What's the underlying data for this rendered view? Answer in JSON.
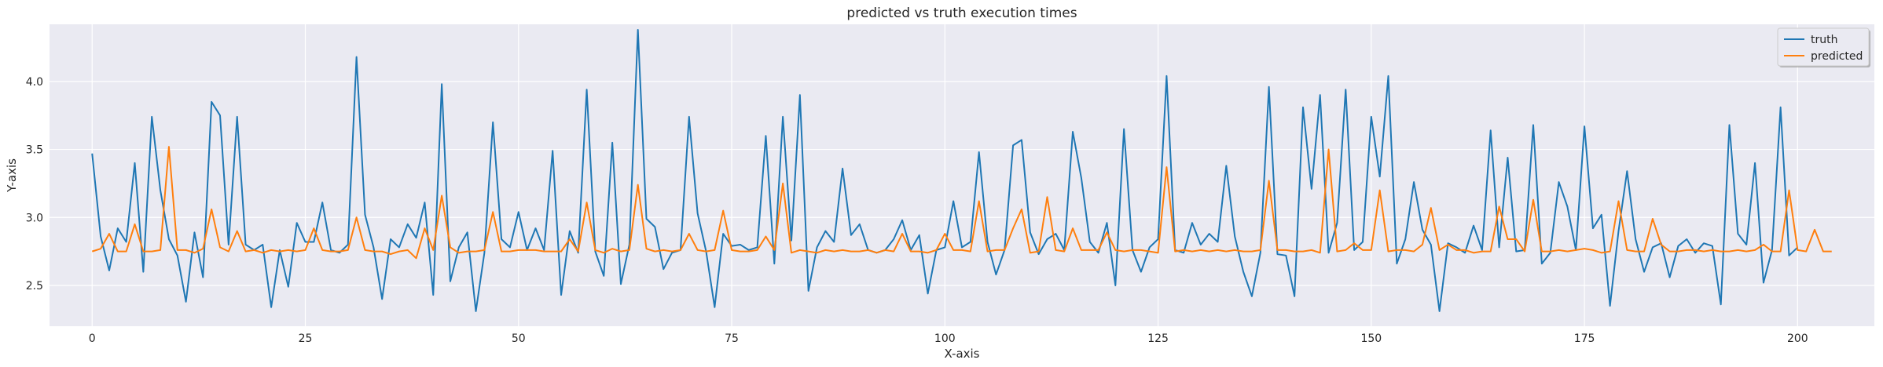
{
  "chart_data": {
    "type": "line",
    "title": "predicted vs truth execution times",
    "xlabel": "X-axis",
    "ylabel": "Y-axis",
    "xlim": [
      -5,
      209
    ],
    "ylim": [
      2.2,
      4.42
    ],
    "xticks": [
      0,
      25,
      50,
      75,
      100,
      125,
      150,
      175,
      200
    ],
    "yticks": [
      2.5,
      3.0,
      3.5,
      4.0
    ],
    "grid": true,
    "legend_placement": "top-right",
    "series": [
      {
        "name": "truth",
        "color": "#1f77b4",
        "values": [
          3.47,
          2.86,
          2.61,
          2.92,
          2.82,
          3.4,
          2.6,
          3.74,
          3.2,
          2.84,
          2.72,
          2.38,
          2.89,
          2.56,
          3.85,
          3.75,
          2.8,
          3.74,
          2.8,
          2.76,
          2.8,
          2.34,
          2.76,
          2.49,
          2.96,
          2.82,
          2.82,
          3.11,
          2.76,
          2.74,
          2.8,
          4.18,
          3.02,
          2.78,
          2.4,
          2.84,
          2.78,
          2.95,
          2.85,
          3.11,
          2.43,
          3.98,
          2.53,
          2.78,
          2.89,
          2.31,
          2.74,
          3.7,
          2.84,
          2.78,
          3.04,
          2.76,
          2.92,
          2.76,
          3.49,
          2.43,
          2.9,
          2.74,
          3.94,
          2.75,
          2.57,
          3.55,
          2.51,
          2.8,
          4.38,
          2.99,
          2.93,
          2.62,
          2.74,
          2.76,
          3.74,
          3.03,
          2.75,
          2.34,
          2.88,
          2.79,
          2.8,
          2.76,
          2.78,
          3.6,
          2.66,
          3.74,
          2.83,
          3.9,
          2.46,
          2.78,
          2.9,
          2.82,
          3.36,
          2.87,
          2.95,
          2.76,
          2.74,
          2.76,
          2.84,
          2.98,
          2.76,
          2.87,
          2.44,
          2.76,
          2.78,
          3.12,
          2.78,
          2.82,
          3.48,
          2.82,
          2.58,
          2.76,
          3.53,
          3.57,
          2.89,
          2.73,
          2.84,
          2.88,
          2.76,
          3.63,
          3.29,
          2.82,
          2.74,
          2.96,
          2.5,
          3.65,
          2.76,
          2.6,
          2.78,
          2.84,
          4.04,
          2.76,
          2.74,
          2.96,
          2.8,
          2.88,
          2.82,
          3.38,
          2.86,
          2.6,
          2.42,
          2.74,
          3.96,
          2.73,
          2.72,
          2.42,
          3.81,
          3.21,
          3.9,
          2.74,
          2.96,
          3.94,
          2.76,
          2.82,
          3.74,
          3.3,
          4.04,
          2.66,
          2.84,
          3.26,
          2.91,
          2.8,
          2.31,
          2.81,
          2.78,
          2.74,
          2.94,
          2.76,
          3.64,
          2.78,
          3.44,
          2.75,
          2.76,
          3.68,
          2.66,
          2.74,
          3.26,
          3.08,
          2.76,
          3.67,
          2.92,
          3.02,
          2.35,
          2.9,
          3.34,
          2.84,
          2.6,
          2.78,
          2.81,
          2.56,
          2.79,
          2.84,
          2.74,
          2.81,
          2.79,
          2.36,
          3.68,
          2.88,
          2.8,
          3.4,
          2.52,
          2.76,
          3.81,
          2.72,
          2.78
        ]
      },
      {
        "name": "predicted",
        "color": "#ff7f0e",
        "values": [
          2.75,
          2.77,
          2.88,
          2.75,
          2.75,
          2.95,
          2.75,
          2.75,
          2.76,
          3.52,
          2.76,
          2.76,
          2.74,
          2.77,
          3.06,
          2.78,
          2.75,
          2.9,
          2.75,
          2.76,
          2.74,
          2.76,
          2.75,
          2.76,
          2.75,
          2.76,
          2.92,
          2.76,
          2.75,
          2.75,
          2.76,
          3.0,
          2.76,
          2.75,
          2.75,
          2.73,
          2.75,
          2.76,
          2.7,
          2.92,
          2.76,
          3.16,
          2.78,
          2.74,
          2.75,
          2.75,
          2.76,
          3.04,
          2.75,
          2.75,
          2.76,
          2.76,
          2.76,
          2.75,
          2.75,
          2.75,
          2.84,
          2.75,
          3.11,
          2.76,
          2.74,
          2.77,
          2.75,
          2.76,
          3.24,
          2.77,
          2.75,
          2.76,
          2.75,
          2.76,
          2.88,
          2.76,
          2.75,
          2.76,
          3.05,
          2.76,
          2.75,
          2.75,
          2.76,
          2.86,
          2.76,
          3.25,
          2.74,
          2.76,
          2.75,
          2.74,
          2.76,
          2.75,
          2.76,
          2.75,
          2.75,
          2.76,
          2.74,
          2.76,
          2.75,
          2.88,
          2.75,
          2.75,
          2.74,
          2.76,
          2.88,
          2.76,
          2.76,
          2.75,
          3.12,
          2.75,
          2.76,
          2.76,
          2.92,
          3.06,
          2.74,
          2.75,
          3.15,
          2.76,
          2.75,
          2.92,
          2.76,
          2.76,
          2.76,
          2.89,
          2.76,
          2.75,
          2.76,
          2.76,
          2.75,
          2.74,
          3.37,
          2.75,
          2.76,
          2.75,
          2.76,
          2.75,
          2.76,
          2.75,
          2.76,
          2.75,
          2.75,
          2.76,
          3.27,
          2.76,
          2.76,
          2.75,
          2.75,
          2.76,
          2.74,
          3.5,
          2.75,
          2.76,
          2.81,
          2.76,
          2.76,
          3.2,
          2.75,
          2.76,
          2.76,
          2.75,
          2.8,
          3.07,
          2.76,
          2.8,
          2.76,
          2.76,
          2.74,
          2.75,
          2.75,
          3.08,
          2.84,
          2.84,
          2.75,
          3.13,
          2.75,
          2.75,
          2.76,
          2.75,
          2.76,
          2.77,
          2.76,
          2.74,
          2.75,
          3.12,
          2.76,
          2.75,
          2.75,
          2.99,
          2.8,
          2.75,
          2.75,
          2.76,
          2.76,
          2.75,
          2.76,
          2.75,
          2.75,
          2.76,
          2.75,
          2.76,
          2.8,
          2.75,
          2.75,
          3.2,
          2.76,
          2.75,
          2.91,
          2.75,
          2.75
        ]
      }
    ]
  },
  "colors": {
    "plot_background": "#eaeaf2",
    "grid": "#ffffff",
    "truth": "#1f77b4",
    "predicted": "#ff7f0e"
  }
}
